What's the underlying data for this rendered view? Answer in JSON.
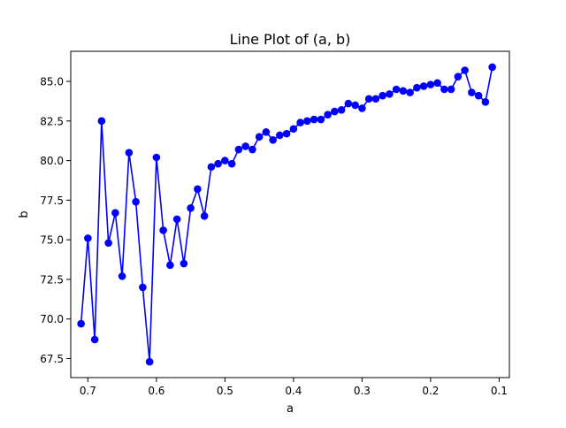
{
  "chart_data": {
    "type": "line",
    "title": "Line Plot of (a, b)",
    "xlabel": "a",
    "ylabel": "b",
    "xlim": [
      0.725,
      0.085
    ],
    "ylim": [
      66.3,
      86.9
    ],
    "x_inverted": true,
    "grid": false,
    "xticks": [
      0.7,
      0.6,
      0.5,
      0.4,
      0.3,
      0.2,
      0.1
    ],
    "xtick_labels": [
      "0.7",
      "0.6",
      "0.5",
      "0.4",
      "0.3",
      "0.2",
      "0.1"
    ],
    "yticks": [
      67.5,
      70.0,
      72.5,
      75.0,
      77.5,
      80.0,
      82.5,
      85.0
    ],
    "ytick_labels": [
      "67.5",
      "70.0",
      "72.5",
      "75.0",
      "77.5",
      "80.0",
      "82.5",
      "85.0"
    ],
    "series": [
      {
        "color": "#0000ff",
        "marker": "circle",
        "x": [
          0.71,
          0.7,
          0.69,
          0.68,
          0.67,
          0.66,
          0.65,
          0.64,
          0.63,
          0.62,
          0.61,
          0.6,
          0.59,
          0.58,
          0.57,
          0.56,
          0.55,
          0.54,
          0.53,
          0.52,
          0.51,
          0.5,
          0.49,
          0.48,
          0.47,
          0.46,
          0.45,
          0.44,
          0.43,
          0.42,
          0.41,
          0.4,
          0.39,
          0.38,
          0.37,
          0.36,
          0.35,
          0.34,
          0.33,
          0.32,
          0.31,
          0.3,
          0.29,
          0.28,
          0.27,
          0.26,
          0.25,
          0.24,
          0.23,
          0.22,
          0.21,
          0.2,
          0.19,
          0.18,
          0.17,
          0.16,
          0.15,
          0.14,
          0.13,
          0.12,
          0.11
        ],
        "y": [
          69.7,
          75.1,
          68.7,
          82.5,
          74.8,
          76.7,
          72.7,
          80.5,
          77.4,
          72.0,
          67.3,
          80.2,
          75.6,
          73.4,
          76.3,
          73.5,
          77.0,
          78.2,
          76.5,
          79.6,
          79.8,
          80.0,
          79.8,
          80.7,
          80.9,
          80.7,
          81.5,
          81.8,
          81.3,
          81.6,
          81.7,
          82.0,
          82.4,
          82.5,
          82.6,
          82.6,
          82.9,
          83.1,
          83.2,
          83.6,
          83.5,
          83.3,
          83.9,
          83.9,
          84.1,
          84.2,
          84.5,
          84.4,
          84.3,
          84.6,
          84.7,
          84.8,
          84.9,
          84.5,
          84.5,
          85.3,
          85.7,
          84.3,
          84.1,
          83.7,
          85.9
        ]
      }
    ]
  }
}
